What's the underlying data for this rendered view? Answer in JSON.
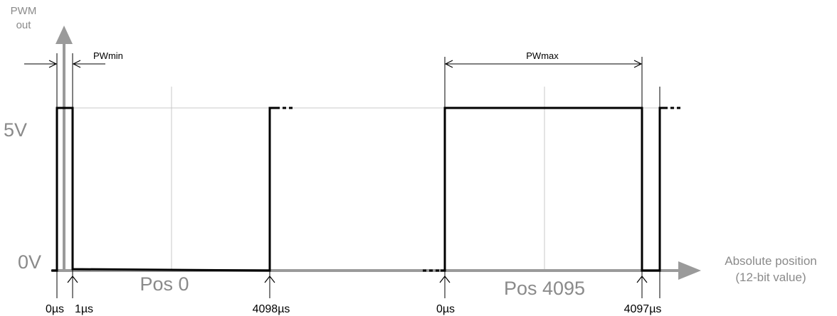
{
  "diagram": {
    "y_axis_label_line1": "PWM",
    "y_axis_label_line2": "out",
    "level_high": "5V",
    "level_low": "0V",
    "x_axis_label_line1": "Absolute position",
    "x_axis_label_line2": "(12-bit value)",
    "pw_min_label": "PWmin",
    "pw_max_label": "PWmax",
    "pos_0_label": "Pos 0",
    "pos_4095_label": "Pos 4095",
    "ticks": {
      "t0_left": "0µs",
      "t1": "1µs",
      "t4098": "4098µs",
      "t0_right": "0µs",
      "t4097": "4097µs"
    },
    "colors": {
      "axis": "#9a9a9a",
      "grid": "#c8c8c8",
      "signal": "#000000",
      "label_grey": "#8a8a8a"
    }
  }
}
